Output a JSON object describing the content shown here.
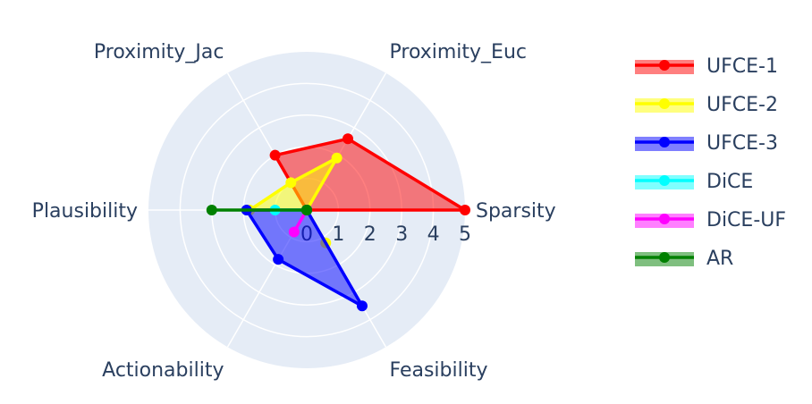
{
  "chart_data": {
    "type": "radar",
    "axes": [
      "Sparsity",
      "Proximity_Euc",
      "Proximity_Jac",
      "Plausibility",
      "Actionability",
      "Feasibility"
    ],
    "radial_ticks": [
      "0",
      "1",
      "2",
      "3",
      "4",
      "5"
    ],
    "radial_range": [
      0,
      5
    ],
    "grid": true,
    "legend_position": "right",
    "series": [
      {
        "name": "UFCE-1",
        "color": "#ff0000",
        "values": [
          5.0,
          2.6,
          2.0,
          0.0,
          0.0,
          0.0
        ]
      },
      {
        "name": "UFCE-2",
        "color": "#ffff00",
        "values": [
          0.0,
          1.9,
          1.0,
          1.8,
          0.0,
          1.2
        ]
      },
      {
        "name": "UFCE-3",
        "color": "#0000ff",
        "values": [
          0.0,
          0.0,
          0.0,
          1.9,
          1.8,
          3.5
        ]
      },
      {
        "name": "DiCE",
        "color": "#00ffff",
        "values": [
          0.0,
          0.0,
          0.0,
          1.0,
          0.0,
          0.0
        ]
      },
      {
        "name": "DiCE-UF",
        "color": "#ff00ff",
        "values": [
          0.0,
          0.0,
          0.0,
          0.0,
          0.8,
          0.0
        ]
      },
      {
        "name": "AR",
        "color": "#008000",
        "values": [
          0.0,
          0.0,
          0.0,
          3.0,
          0.0,
          0.0
        ]
      }
    ]
  }
}
